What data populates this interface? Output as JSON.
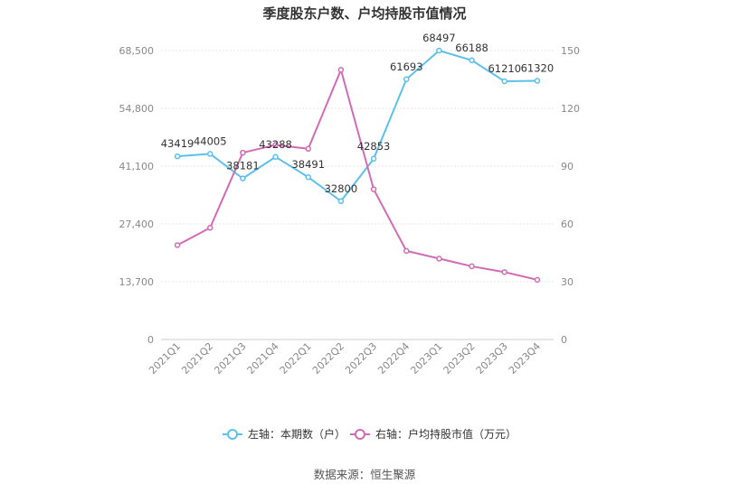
{
  "chart_data": {
    "type": "line",
    "title": "季度股东户数、户均持股市值情况",
    "categories": [
      "2021Q1",
      "2021Q2",
      "2021Q3",
      "2021Q4",
      "2022Q1",
      "2022Q2",
      "2022Q3",
      "2022Q4",
      "2023Q1",
      "2023Q2",
      "2023Q3",
      "2023Q4"
    ],
    "left_axis": {
      "ticks": [
        "0",
        "13,700",
        "27,400",
        "41,100",
        "54,800",
        "68,500"
      ],
      "ylim": [
        0,
        68500
      ]
    },
    "right_axis": {
      "ticks": [
        "0",
        "30",
        "60",
        "90",
        "120",
        "150"
      ],
      "ylim": [
        0,
        150
      ]
    },
    "series": [
      {
        "name": "左轴：本期数（户）",
        "axis": "left",
        "color": "#5bc0eb",
        "values": [
          43419,
          44005,
          38181,
          43288,
          38491,
          32800,
          42853,
          61693,
          68497,
          66188,
          61210,
          61320
        ],
        "labels": [
          "43419",
          "44005",
          "38181",
          "43288",
          "38491",
          "32800",
          "42853",
          "61693",
          "68497",
          "66188",
          "61210",
          "61320"
        ]
      },
      {
        "name": "右轴：户均持股市值（万元）",
        "axis": "right",
        "color": "#d16cb4",
        "values": [
          49,
          58,
          97,
          101,
          99,
          140,
          78,
          46,
          42,
          38,
          35,
          31
        ]
      }
    ],
    "grid": true,
    "legend_position": "bottom"
  },
  "source": "数据来源：恒生聚源"
}
